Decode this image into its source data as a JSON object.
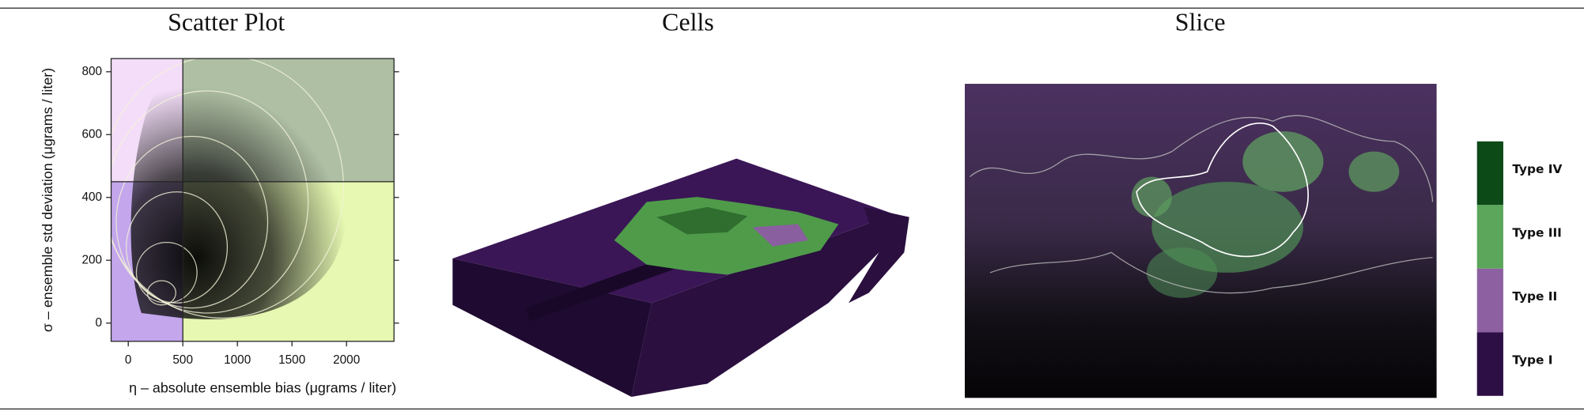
{
  "panels": [
    {
      "title": "Scatter Plot"
    },
    {
      "title": "Cells"
    },
    {
      "title": "Slice"
    }
  ],
  "scatter": {
    "x_label": "η – absolute ensemble bias (μgrams / liter)",
    "y_label": "σ – ensemble std deviation (μgrams / liter)",
    "xlim": [
      -157,
      2435
    ],
    "ylim": [
      -58,
      842
    ],
    "xticks": [
      0,
      500,
      1000,
      1500,
      2000
    ],
    "yticks": [
      0,
      200,
      400,
      600,
      800
    ],
    "x_threshold": 500,
    "y_threshold": 450,
    "quadrant_colors": {
      "top_left": "#f3ddf8",
      "top_right": "#aebfa3",
      "bottom_left": "#c3a6ec",
      "bottom_right": "#e6f8b1"
    }
  },
  "legend": [
    {
      "label": "Type IV",
      "color": "#0c4a18"
    },
    {
      "label": "Type III",
      "color": "#5ba65a"
    },
    {
      "label": "Type II",
      "color": "#8d60a1"
    },
    {
      "label": "Type I",
      "color": "#2d0e45"
    }
  ]
}
